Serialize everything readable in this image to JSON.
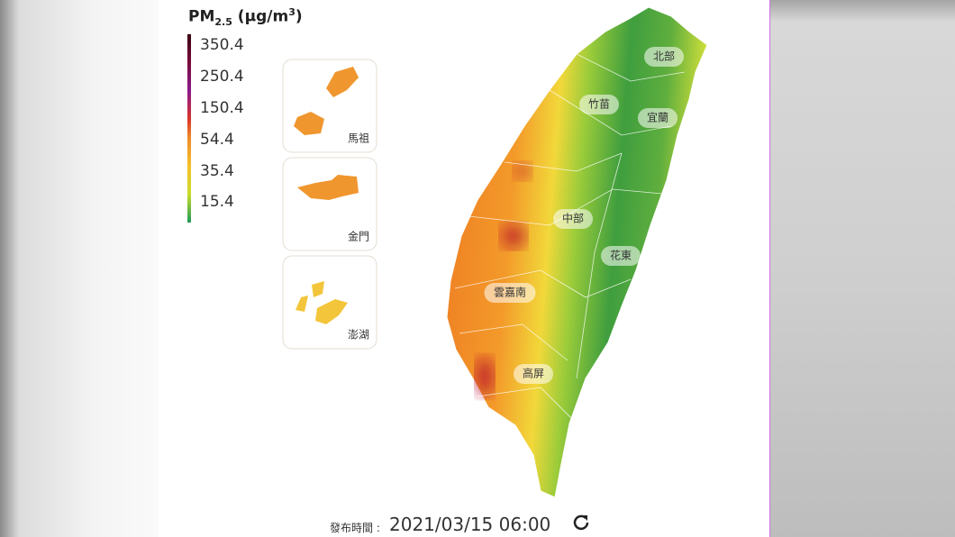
{
  "legend": {
    "title": [
      "PM",
      "2.5",
      " (μg/m",
      "3",
      ")"
    ],
    "ticks": [
      350.4,
      250.4,
      150.4,
      54.4,
      35.4,
      15.4
    ]
  },
  "insets": [
    "馬祖",
    "金門",
    "澎湖"
  ],
  "regions": [
    "北部",
    "竹苗",
    "宜蘭",
    "中部",
    "花東",
    "雲嘉南",
    "高屏"
  ],
  "footer": {
    "label": "發布時間 :",
    "time": "2021/03/15 06:00"
  }
}
